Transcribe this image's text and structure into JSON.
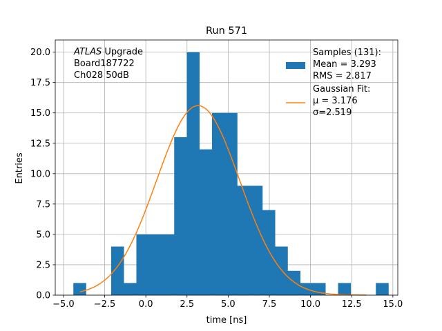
{
  "chart_data": {
    "type": "bar",
    "title": "Run 571",
    "xlabel": "time [ns]",
    "ylabel": "Entries",
    "xlim": [
      -5.5,
      15.3
    ],
    "ylim": [
      0,
      21
    ],
    "xticks": [
      -5.0,
      -2.5,
      0.0,
      2.5,
      5.0,
      7.5,
      10.0,
      12.5,
      15.0
    ],
    "xtick_labels": [
      "−5.0",
      "−2.5",
      "0.0",
      "2.5",
      "5.0",
      "7.5",
      "10.0",
      "12.5",
      "15.0"
    ],
    "yticks": [
      0.0,
      2.5,
      5.0,
      7.5,
      10.0,
      12.5,
      15.0,
      17.5,
      20.0
    ],
    "ytick_labels": [
      "0.0",
      "2.5",
      "5.0",
      "7.5",
      "10.0",
      "12.5",
      "15.0",
      "17.5",
      "20.0"
    ],
    "grid": true,
    "legend_placement": "upper-right",
    "histogram": {
      "bin_start": -4.4,
      "bin_width": 0.7653,
      "counts": [
        1,
        0,
        0,
        4,
        1,
        5,
        5,
        5,
        13,
        20,
        12,
        15,
        15,
        9,
        9,
        7,
        4,
        2,
        1,
        1,
        0,
        1,
        0,
        0,
        1
      ],
      "color": "#1f77b4"
    },
    "fit": {
      "type": "gaussian",
      "mu": 3.176,
      "sigma": 2.519,
      "amplitude": 15.6,
      "x_range": [
        -4.0,
        13.4
      ],
      "color": "#ff7f0e"
    },
    "annotation": {
      "lines": [
        {
          "italic": "ATLAS",
          "text": " Upgrade"
        },
        {
          "italic": "",
          "text": " Board187722"
        },
        {
          "italic": "",
          "text": " Ch028 50dB"
        }
      ]
    },
    "legend": [
      {
        "kind": "patch",
        "color": "#1f77b4",
        "lines": [
          "Samples (131):",
          " Mean = 3.293",
          " RMS = 2.817"
        ]
      },
      {
        "kind": "line",
        "color": "#ff7f0e",
        "lines": [
          "Gaussian Fit:",
          " μ = 3.176",
          " σ=2.519"
        ]
      }
    ]
  }
}
